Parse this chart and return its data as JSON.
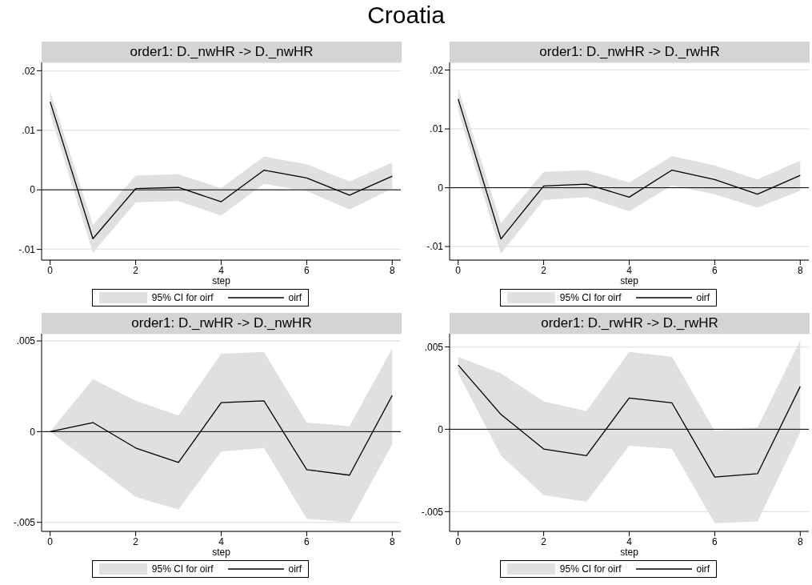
{
  "chart_data": [
    {
      "type": "line",
      "title": "Croatia",
      "subtitle": "order1: D._nwHR -> D._nwHR",
      "xlabel": "step",
      "x": [
        0,
        1,
        2,
        3,
        4,
        5,
        6,
        7,
        8
      ],
      "xlim": [
        -0.2,
        8.2
      ],
      "xticks": [
        0,
        2,
        4,
        6,
        8
      ],
      "ylim": [
        -0.0118,
        0.0214
      ],
      "yticks": [
        {
          "value": -0.01,
          "label": "-.01"
        },
        {
          "value": 0,
          "label": "0"
        },
        {
          "value": 0.01,
          "label": ".01"
        },
        {
          "value": 0.02,
          "label": ".02"
        }
      ],
      "grid": "y",
      "legend": "bottom",
      "ref_lines": [
        {
          "axis": "y",
          "value": 0,
          "color": "#000000"
        }
      ],
      "series": [
        {
          "name": "95% CI for oirf",
          "type": "area",
          "color": "#e0e0e0",
          "values": [
            null,
            null,
            null,
            null,
            null,
            null,
            null,
            null,
            null
          ],
          "lower": [
            0.0128,
            -0.0106,
            -0.0021,
            -0.0019,
            -0.0043,
            0.001,
            -0.0002,
            -0.0033,
            0.0002
          ],
          "upper": [
            0.0166,
            -0.0059,
            0.0024,
            0.0026,
            0.0003,
            0.0056,
            0.0043,
            0.0014,
            0.0046
          ]
        },
        {
          "name": "oirf",
          "color": "#000000",
          "values": [
            0.0148,
            -0.0082,
            0.0002,
            0.0004,
            -0.002,
            0.0033,
            0.002,
            -0.0009,
            0.0023
          ]
        }
      ]
    },
    {
      "type": "line",
      "subtitle": "order1: D._nwHR -> D._rwHR",
      "xlabel": "step",
      "x": [
        0,
        1,
        2,
        3,
        4,
        5,
        6,
        7,
        8
      ],
      "xlim": [
        -0.2,
        8.2
      ],
      "xticks": [
        0,
        2,
        4,
        6,
        8
      ],
      "ylim": [
        -0.0123,
        0.0213
      ],
      "yticks": [
        {
          "value": -0.01,
          "label": "-.01"
        },
        {
          "value": 0,
          "label": "0"
        },
        {
          "value": 0.01,
          "label": ".01"
        },
        {
          "value": 0.02,
          "label": ".02"
        }
      ],
      "grid": "y",
      "legend": "bottom",
      "ref_lines": [
        {
          "axis": "y",
          "value": 0,
          "color": "#000000"
        }
      ],
      "series": [
        {
          "name": "95% CI for oirf",
          "type": "area",
          "color": "#e0e0e0",
          "values": [
            null,
            null,
            null,
            null,
            null,
            null,
            null,
            null,
            null
          ],
          "lower": [
            0.0132,
            -0.0112,
            -0.0021,
            -0.0016,
            -0.004,
            0.0004,
            -0.0011,
            -0.0034,
            -0.0005
          ],
          "upper": [
            0.0169,
            -0.006,
            0.0027,
            0.003,
            0.0009,
            0.0054,
            0.0038,
            0.0014,
            0.0046
          ]
        },
        {
          "name": "oirf",
          "color": "#000000",
          "values": [
            0.0151,
            -0.0087,
            0.0003,
            0.0006,
            -0.0016,
            0.003,
            0.0014,
            -0.0011,
            0.0021
          ]
        }
      ]
    },
    {
      "type": "line",
      "subtitle": "order1: D._rwHR -> D._nwHR",
      "xlabel": "step",
      "x": [
        0,
        1,
        2,
        3,
        4,
        5,
        6,
        7,
        8
      ],
      "xlim": [
        -0.2,
        8.2
      ],
      "xticks": [
        0,
        2,
        4,
        6,
        8
      ],
      "ylim": [
        -0.0055,
        0.0054
      ],
      "yticks": [
        {
          "value": -0.005,
          "label": "-.005"
        },
        {
          "value": 0,
          "label": "0"
        },
        {
          "value": 0.005,
          "label": ".005"
        }
      ],
      "grid": "y",
      "legend": "bottom",
      "ref_lines": [
        {
          "axis": "y",
          "value": 0,
          "color": "#000000"
        }
      ],
      "series": [
        {
          "name": "95% CI for oirf",
          "type": "area",
          "color": "#e0e0e0",
          "values": [
            null,
            null,
            null,
            null,
            null,
            null,
            null,
            null,
            null
          ],
          "lower": [
            0,
            -0.0018,
            -0.0036,
            -0.0043,
            -0.0011,
            -0.0009,
            -0.0048,
            -0.005,
            -0.0007
          ],
          "upper": [
            0,
            0.0029,
            0.0017,
            0.0009,
            0.0043,
            0.0044,
            0.0005,
            0.0003,
            0.0046
          ]
        },
        {
          "name": "oirf",
          "color": "#000000",
          "values": [
            0,
            0.0005,
            -0.0009,
            -0.0017,
            0.0016,
            0.0017,
            -0.0021,
            -0.0024,
            0.002
          ]
        }
      ]
    },
    {
      "type": "line",
      "subtitle": "order1: D._rwHR -> D._rwHR",
      "xlabel": "step",
      "x": [
        0,
        1,
        2,
        3,
        4,
        5,
        6,
        7,
        8
      ],
      "xlim": [
        -0.2,
        8.2
      ],
      "xticks": [
        0,
        2,
        4,
        6,
        8
      ],
      "ylim": [
        -0.0062,
        0.0058
      ],
      "yticks": [
        {
          "value": -0.005,
          "label": "-.005"
        },
        {
          "value": 0,
          "label": "0"
        },
        {
          "value": 0.005,
          "label": ".005"
        }
      ],
      "grid": "y",
      "legend": "bottom",
      "ref_lines": [
        {
          "axis": "y",
          "value": 0,
          "color": "#000000"
        }
      ],
      "series": [
        {
          "name": "95% CI for oirf",
          "type": "area",
          "color": "#e0e0e0",
          "values": [
            null,
            null,
            null,
            null,
            null,
            null,
            null,
            null,
            null
          ],
          "lower": [
            0.0034,
            -0.0016,
            -0.004,
            -0.0044,
            -0.001,
            -0.0012,
            -0.0057,
            -0.0056,
            -0.0002
          ],
          "upper": [
            0.0044,
            0.0034,
            0.0017,
            0.0011,
            0.0047,
            0.0044,
            -0.0001,
            0.0001,
            0.0054
          ]
        },
        {
          "name": "oirf",
          "color": "#000000",
          "values": [
            0.0039,
            0.0009,
            -0.0012,
            -0.0016,
            0.0019,
            0.0016,
            -0.0029,
            -0.0027,
            0.0026
          ]
        }
      ]
    }
  ]
}
